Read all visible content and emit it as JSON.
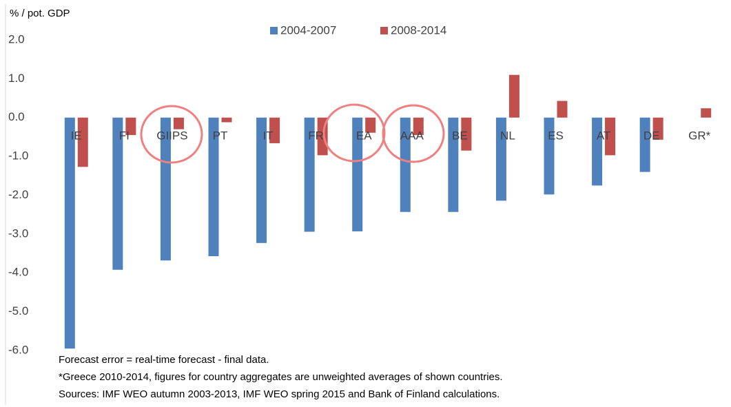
{
  "chart_data": {
    "type": "bar",
    "y_axis_label": "% / pot. GDP",
    "categories": [
      "IE",
      "FI",
      "GIIPS",
      "PT",
      "IT",
      "FR",
      "EA",
      "AAA",
      "BE",
      "NL",
      "ES",
      "AT",
      "DE",
      "GR*"
    ],
    "series": [
      {
        "name": "2004-2007",
        "color": "#4f81bd",
        "values": [
          -5.95,
          -3.92,
          -3.68,
          -3.57,
          -3.23,
          -2.94,
          -2.93,
          -2.43,
          -2.43,
          -2.14,
          -1.98,
          -1.75,
          -1.4,
          null
        ]
      },
      {
        "name": "2008-2014",
        "color": "#c0504d",
        "values": [
          -1.27,
          -0.45,
          -0.3,
          -0.12,
          -0.66,
          -0.97,
          -0.39,
          -0.45,
          -0.85,
          1.1,
          0.43,
          -0.97,
          -0.57,
          0.24
        ]
      }
    ],
    "ylim": [
      -6,
      2
    ],
    "yticks": [
      {
        "value": 2,
        "label": "2.0"
      },
      {
        "value": 1,
        "label": "1.0"
      },
      {
        "value": 0,
        "label": "0.0"
      },
      {
        "value": -1,
        "label": "-1.0"
      },
      {
        "value": -2,
        "label": "-2.0"
      },
      {
        "value": -3,
        "label": "-3.0"
      },
      {
        "value": -4,
        "label": "-4.0"
      },
      {
        "value": -5,
        "label": "-5.0"
      },
      {
        "value": -6,
        "label": "-6.0"
      }
    ],
    "legend": "top",
    "notes": [
      "Forecast error = real-time forecast - final data.",
      "*Greece 2010-2014, figures for country aggregates are unweighted averages of shown countries.",
      "Sources: IMF WEO autumn 2003-2013, IMF WEO spring 2015 and Bank of Finland calculations."
    ]
  }
}
